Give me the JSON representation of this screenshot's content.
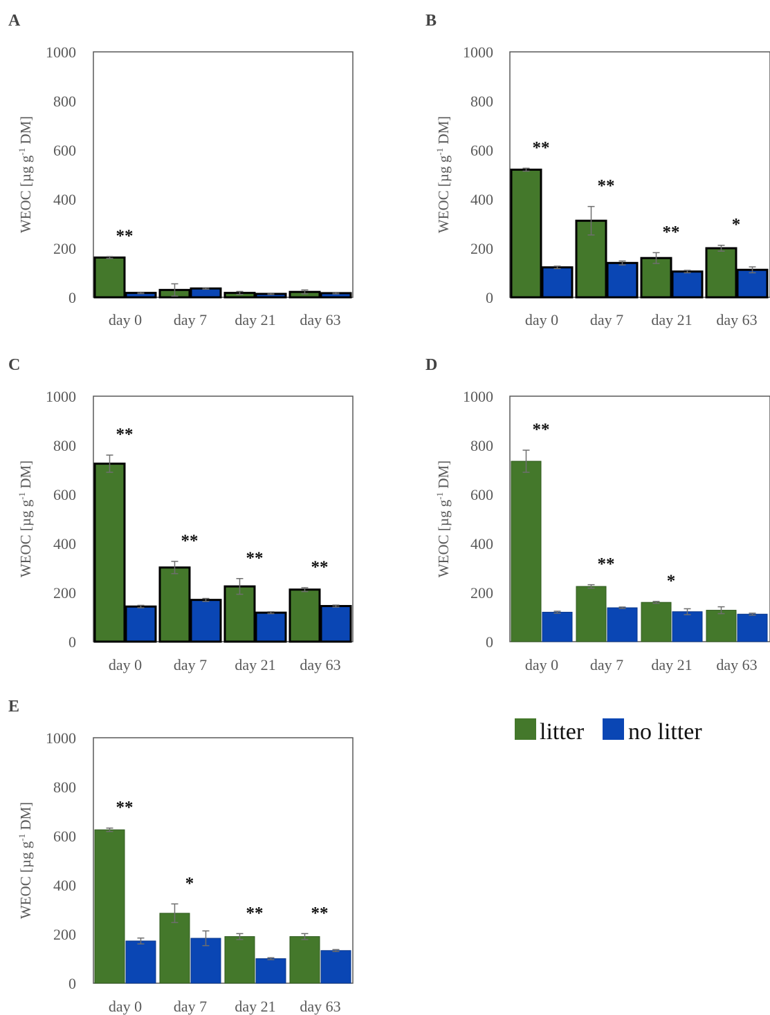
{
  "chart_data": [
    {
      "panel": "A",
      "type": "bar",
      "ylabel_main": "WEOC [µg g",
      "ylabel_sup": "-1",
      "ylabel_end": " DM]",
      "ylim": [
        0,
        1000
      ],
      "yticks": [
        0,
        200,
        400,
        600,
        800,
        1000
      ],
      "categories": [
        "day 0",
        "day 7",
        "day 21",
        "day 63"
      ],
      "series": [
        {
          "name": "litter",
          "values": [
            162,
            30,
            18,
            22
          ],
          "errors": [
            4,
            25,
            6,
            8
          ]
        },
        {
          "name": "no litter",
          "values": [
            18,
            36,
            14,
            17
          ],
          "errors": [
            3,
            3,
            3,
            3
          ]
        }
      ],
      "significance": [
        "**",
        "",
        "",
        ""
      ],
      "outlined": true
    },
    {
      "panel": "B",
      "type": "bar",
      "ylabel_main": "WEOC [µg g",
      "ylabel_sup": "-1",
      "ylabel_end": " DM]",
      "ylim": [
        0,
        1000
      ],
      "yticks": [
        0,
        200,
        400,
        600,
        800,
        1000
      ],
      "categories": [
        "day 0",
        "day 7",
        "day 21",
        "day 63"
      ],
      "series": [
        {
          "name": "litter",
          "values": [
            520,
            312,
            160,
            200
          ],
          "errors": [
            6,
            58,
            22,
            12
          ]
        },
        {
          "name": "no litter",
          "values": [
            122,
            140,
            105,
            112
          ],
          "errors": [
            5,
            8,
            5,
            12
          ]
        }
      ],
      "significance": [
        "**",
        "**",
        "**",
        "*"
      ],
      "outlined": true
    },
    {
      "panel": "C",
      "type": "bar",
      "ylabel_main": "WEOC [µg g",
      "ylabel_sup": "-1",
      "ylabel_end": " DM]",
      "ylim": [
        0,
        1000
      ],
      "yticks": [
        0,
        200,
        400,
        600,
        800,
        1000
      ],
      "categories": [
        "day 0",
        "day 7",
        "day 21",
        "day 63"
      ],
      "series": [
        {
          "name": "litter",
          "values": [
            725,
            302,
            225,
            212
          ],
          "errors": [
            35,
            25,
            32,
            8
          ]
        },
        {
          "name": "no litter",
          "values": [
            143,
            170,
            118,
            145
          ],
          "errors": [
            5,
            6,
            4,
            4
          ]
        }
      ],
      "significance": [
        "**",
        "**",
        "**",
        "**"
      ],
      "outlined": true
    },
    {
      "panel": "D",
      "type": "bar",
      "ylabel_main": "WEOC [µg g",
      "ylabel_sup": "-1",
      "ylabel_end": " DM]",
      "ylim": [
        0,
        1000
      ],
      "yticks": [
        0,
        200,
        400,
        600,
        800,
        1000
      ],
      "categories": [
        "day 0",
        "day 7",
        "day 21",
        "day 63"
      ],
      "series": [
        {
          "name": "litter",
          "values": [
            735,
            225,
            160,
            128
          ],
          "errors": [
            45,
            7,
            4,
            14
          ]
        },
        {
          "name": "no litter",
          "values": [
            120,
            138,
            122,
            112
          ],
          "errors": [
            4,
            3,
            12,
            4
          ]
        }
      ],
      "significance": [
        "**",
        "**",
        "*",
        ""
      ],
      "outlined": false
    },
    {
      "panel": "E",
      "type": "bar",
      "ylabel_main": "WEOC [µg g",
      "ylabel_sup": "-1",
      "ylabel_end": " DM]",
      "ylim": [
        0,
        1000
      ],
      "yticks": [
        0,
        200,
        400,
        600,
        800,
        1000
      ],
      "categories": [
        "day 0",
        "day 7",
        "day 21",
        "day 63"
      ],
      "series": [
        {
          "name": "litter",
          "values": [
            625,
            285,
            190,
            190
          ],
          "errors": [
            7,
            38,
            12,
            12
          ]
        },
        {
          "name": "no litter",
          "values": [
            172,
            183,
            100,
            133
          ],
          "errors": [
            12,
            30,
            4,
            4
          ]
        }
      ],
      "significance": [
        "**",
        "*",
        "**",
        "**"
      ],
      "outlined": false
    }
  ],
  "legend": {
    "items": [
      {
        "label": "litter",
        "color": "#44782b"
      },
      {
        "label": "no litter",
        "color": "#0a46b4"
      }
    ]
  },
  "colors": {
    "litter": "#44782b",
    "no_litter": "#0a46b4",
    "error_bar": "#6e6e6e",
    "frame": "#595959"
  }
}
